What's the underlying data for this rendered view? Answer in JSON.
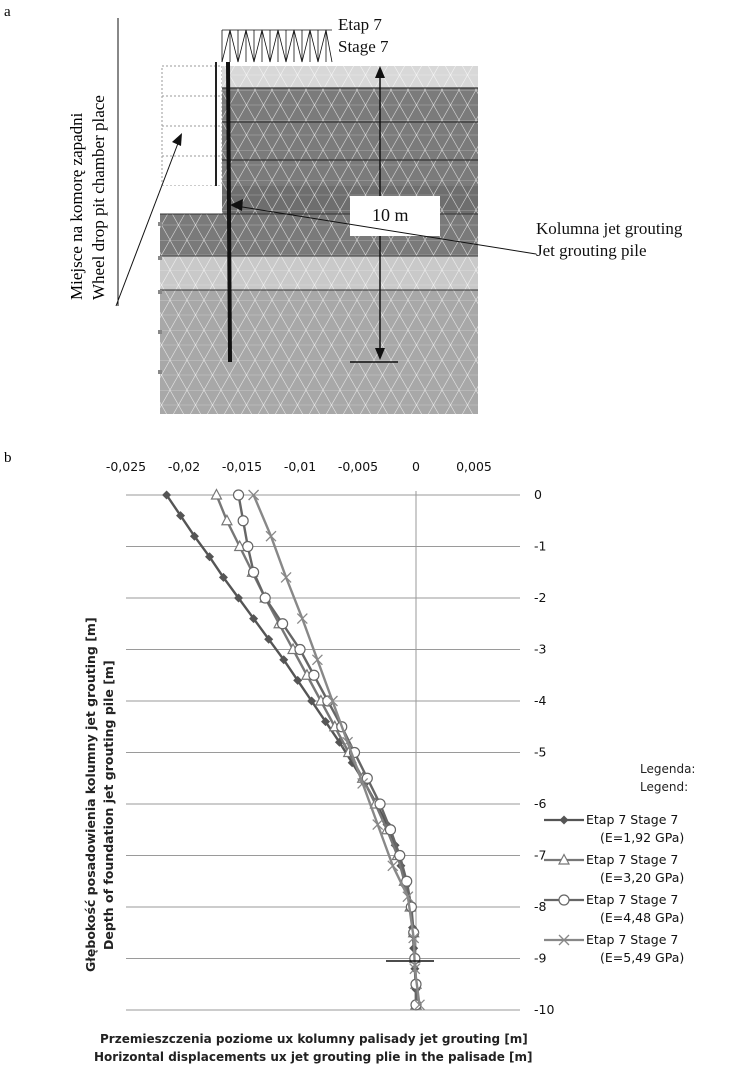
{
  "panel_a": {
    "letter": "a",
    "stage_label_pl": "Etap 7",
    "stage_label_en": "Stage 7",
    "left_label_pl": "Miejsce na komorę zapadni",
    "left_label_en": "Wheel drop pit chamber place",
    "right_label_pl": "Kolumna jet grouting",
    "right_label_en": "Jet grouting pile",
    "length_label": "10 m"
  },
  "panel_b": {
    "letter": "b",
    "legend_title_pl": "Legenda:",
    "legend_title_en": "Legend:"
  },
  "chart_data": {
    "type": "line",
    "xlabel": [
      "Przemieszczenia poziome ux kolumny palisady jet grouting [m]",
      "Horizontal displacements  ux jet grouting plie in the palisade [m]"
    ],
    "ylabel": [
      "Głębokość posadowienia kolumny jet grouting [m]",
      "Depth of foundation  jet grouting pile [m]"
    ],
    "xlim": [
      -0.025,
      0.005
    ],
    "ylim": [
      -10,
      0
    ],
    "x_ticks": [
      "-0,025",
      "-0,02",
      "-0,015",
      "-0,01",
      "-0,005",
      "0",
      "0,005"
    ],
    "y_ticks": [
      "0",
      "-1",
      "-2",
      "-3",
      "-4",
      "-5",
      "-6",
      "-7",
      "-8",
      "-9",
      "-10"
    ],
    "grid": "horizontal",
    "legend_position": "right",
    "series": [
      {
        "name": "Etap 7  Stage 7",
        "note": "(E=1,92 GPa)",
        "marker": "diamond",
        "color": "#555555",
        "points": [
          [
            0,
            -0.0215
          ],
          [
            -0.4,
            -0.0203
          ],
          [
            -0.8,
            -0.0191
          ],
          [
            -1.2,
            -0.0178
          ],
          [
            -1.6,
            -0.0166
          ],
          [
            -2.0,
            -0.0153
          ],
          [
            -2.4,
            -0.014
          ],
          [
            -2.8,
            -0.0127
          ],
          [
            -3.2,
            -0.0114
          ],
          [
            -3.6,
            -0.0102
          ],
          [
            -4.0,
            -0.009
          ],
          [
            -4.4,
            -0.0078
          ],
          [
            -4.8,
            -0.0066
          ],
          [
            -5.2,
            -0.0055
          ],
          [
            -5.6,
            -0.0044
          ],
          [
            -6.0,
            -0.0034
          ],
          [
            -6.4,
            -0.0025
          ],
          [
            -6.8,
            -0.0018
          ],
          [
            -7.2,
            -0.0013
          ],
          [
            -7.6,
            -0.0009
          ],
          [
            -8.0,
            -0.0005
          ],
          [
            -8.4,
            -0.0003
          ],
          [
            -8.8,
            -0.0002
          ],
          [
            -9.2,
            -0.0001
          ],
          [
            -9.6,
            0.0
          ],
          [
            -9.9,
            0.0
          ]
        ]
      },
      {
        "name": "Etap 7  Stage 7",
        "note": "(E=3,20 GPa)",
        "marker": "triangle",
        "color": "#777777",
        "points": [
          [
            0,
            -0.0172
          ],
          [
            -0.5,
            -0.0163
          ],
          [
            -1.0,
            -0.0152
          ],
          [
            -1.5,
            -0.0141
          ],
          [
            -2.0,
            -0.013
          ],
          [
            -2.5,
            -0.0118
          ],
          [
            -3.0,
            -0.0106
          ],
          [
            -3.5,
            -0.0094
          ],
          [
            -4.0,
            -0.0082
          ],
          [
            -4.5,
            -0.007
          ],
          [
            -5.0,
            -0.0058
          ],
          [
            -5.5,
            -0.0046
          ],
          [
            -6.0,
            -0.0035
          ],
          [
            -6.5,
            -0.0025
          ],
          [
            -7.0,
            -0.0016
          ],
          [
            -7.5,
            -0.001
          ],
          [
            -8.0,
            -0.0005
          ],
          [
            -8.5,
            -0.0002
          ],
          [
            -9.0,
            -0.0001
          ],
          [
            -9.5,
            0.0
          ],
          [
            -9.9,
            0.0
          ]
        ]
      },
      {
        "name": "Etap 7  Stage 7",
        "note": "(E=4,48 GPa)",
        "marker": "circle",
        "color": "#666666",
        "points": [
          [
            0,
            -0.0153
          ],
          [
            -0.5,
            -0.0149
          ],
          [
            -1.0,
            -0.0145
          ],
          [
            -1.5,
            -0.014
          ],
          [
            -2.0,
            -0.013
          ],
          [
            -2.5,
            -0.0115
          ],
          [
            -3.0,
            -0.01
          ],
          [
            -3.5,
            -0.0088
          ],
          [
            -4.0,
            -0.0076
          ],
          [
            -4.5,
            -0.0064
          ],
          [
            -5.0,
            -0.0053
          ],
          [
            -5.5,
            -0.0042
          ],
          [
            -6.0,
            -0.0031
          ],
          [
            -6.5,
            -0.0022
          ],
          [
            -7.0,
            -0.0014
          ],
          [
            -7.5,
            -0.0008
          ],
          [
            -8.0,
            -0.0004
          ],
          [
            -8.5,
            -0.0002
          ],
          [
            -9.0,
            -0.0001
          ],
          [
            -9.5,
            0.0
          ],
          [
            -9.9,
            0.0
          ]
        ]
      },
      {
        "name": "Etap 7  Stage 7",
        "note": "(E=5,49 GPa)",
        "marker": "x",
        "color": "#888888",
        "points": [
          [
            0,
            -0.014
          ],
          [
            -0.8,
            -0.0125
          ],
          [
            -1.6,
            -0.0112
          ],
          [
            -2.4,
            -0.0098
          ],
          [
            -3.2,
            -0.0085
          ],
          [
            -4.0,
            -0.0072
          ],
          [
            -4.8,
            -0.0059
          ],
          [
            -5.6,
            -0.0046
          ],
          [
            -6.4,
            -0.0033
          ],
          [
            -7.2,
            -0.002
          ],
          [
            -7.8,
            -0.0007
          ],
          [
            -8.6,
            -0.0002
          ],
          [
            -9.2,
            -0.0001
          ],
          [
            -9.9,
            0.0003
          ]
        ]
      }
    ]
  }
}
